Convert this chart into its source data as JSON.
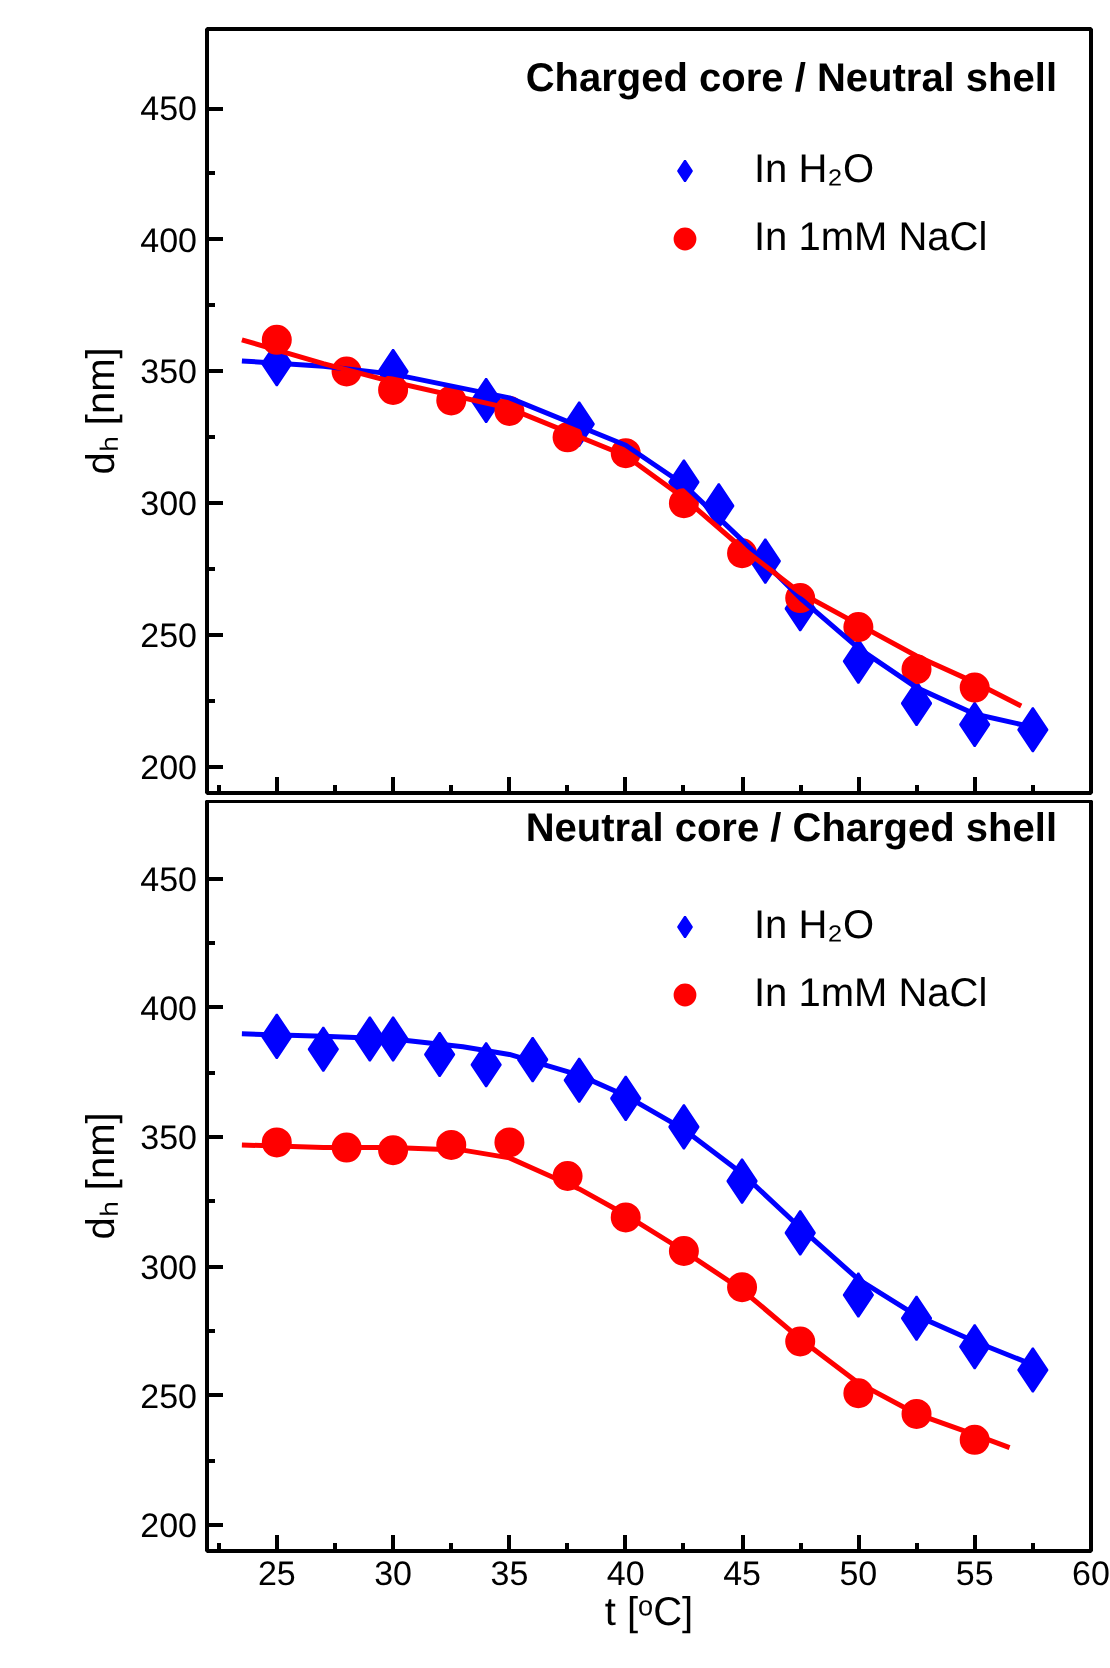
{
  "chart_data": [
    {
      "type": "scatter",
      "title": "Charged core / Neutral shell",
      "ylabel": "dₕ [nm]",
      "xlim": [
        22,
        60
      ],
      "ylim": [
        190,
        480
      ],
      "xticks": [
        25,
        30,
        35,
        40,
        45,
        50,
        55,
        60
      ],
      "yticks": [
        200,
        250,
        300,
        350,
        400,
        450
      ],
      "tick_labels": "y",
      "legend": "top right",
      "grid": false,
      "series": [
        {
          "name": "In H₂O",
          "color": "#0000ff",
          "marker": "diamond",
          "x": [
            25,
            30,
            34,
            38,
            42.5,
            44,
            46,
            47.5,
            50,
            52.5,
            55,
            57.5
          ],
          "values": [
            353,
            350,
            339,
            330,
            308,
            299,
            278,
            260,
            240,
            224,
            216,
            214
          ]
        },
        {
          "name": "In 1mM NaCl",
          "color": "#ff0000",
          "marker": "circle",
          "x": [
            25,
            28,
            30,
            32.5,
            35,
            37.5,
            40,
            42.5,
            45,
            47.5,
            50,
            52.5,
            55
          ],
          "values": [
            362,
            350,
            343,
            339,
            335,
            325,
            319,
            300,
            281,
            264,
            253,
            237,
            230
          ]
        },
        {
          "type": "line",
          "color": "#0000ff",
          "marker": "none",
          "x": [
            23.5,
            27,
            30,
            35,
            40,
            42.5,
            45,
            47.5,
            50,
            52.5,
            55,
            57.5
          ],
          "values": [
            354,
            352,
            349,
            340,
            322,
            307,
            286,
            264,
            245,
            230,
            220,
            215
          ]
        },
        {
          "type": "line",
          "color": "#ff0000",
          "marker": "none",
          "x": [
            23.5,
            27,
            30,
            35,
            40,
            42.5,
            45,
            47.5,
            50,
            52.5,
            55,
            57
          ],
          "values": [
            362,
            353,
            346,
            336,
            318,
            302,
            283,
            266,
            254,
            242,
            232,
            223
          ]
        }
      ]
    },
    {
      "type": "scatter",
      "title": "Neutral core / Charged shell",
      "xlabel": "t [ᵒC]",
      "ylabel": "dₕ [nm]",
      "xlim": [
        22,
        60
      ],
      "ylim": [
        190,
        480
      ],
      "xticks": [
        25,
        30,
        35,
        40,
        45,
        50,
        55,
        60
      ],
      "yticks": [
        200,
        250,
        300,
        350,
        400,
        450
      ],
      "legend": "top right",
      "grid": false,
      "series": [
        {
          "name": "In H₂O",
          "color": "#0000ff",
          "marker": "diamond",
          "x": [
            25,
            27,
            29,
            30,
            32,
            34,
            36,
            38,
            40,
            42.5,
            45,
            47.5,
            50,
            52.5,
            55,
            57.5
          ],
          "values": [
            389,
            384,
            388,
            388,
            382,
            378,
            380,
            372,
            365,
            354,
            333,
            313,
            289,
            280,
            269,
            260
          ]
        },
        {
          "name": "In 1mM NaCl",
          "color": "#ff0000",
          "marker": "circle",
          "x": [
            25,
            28,
            30,
            32.5,
            35,
            37.5,
            40,
            42.5,
            45,
            47.5,
            50,
            52.5,
            55
          ],
          "values": [
            348,
            346,
            345,
            347,
            348,
            335,
            319,
            306,
            292,
            271,
            251,
            243,
            233
          ]
        },
        {
          "type": "line",
          "color": "#0000ff",
          "marker": "none",
          "x": [
            23.5,
            27,
            30,
            33,
            35,
            38,
            40,
            42.5,
            45,
            47.5,
            50,
            52.5,
            55,
            57.5
          ],
          "values": [
            390,
            389,
            388,
            385,
            382,
            374,
            366,
            353,
            336,
            315,
            295,
            281,
            271,
            262
          ]
        },
        {
          "type": "line",
          "color": "#ff0000",
          "marker": "none",
          "x": [
            23.5,
            27,
            30,
            33,
            35,
            36,
            38,
            40,
            42.5,
            45,
            47.5,
            50,
            52.5,
            55,
            56.5
          ],
          "values": [
            347,
            346,
            346,
            345,
            342,
            338,
            330,
            320,
            306,
            291,
            272,
            255,
            243,
            235,
            230
          ]
        }
      ]
    }
  ]
}
